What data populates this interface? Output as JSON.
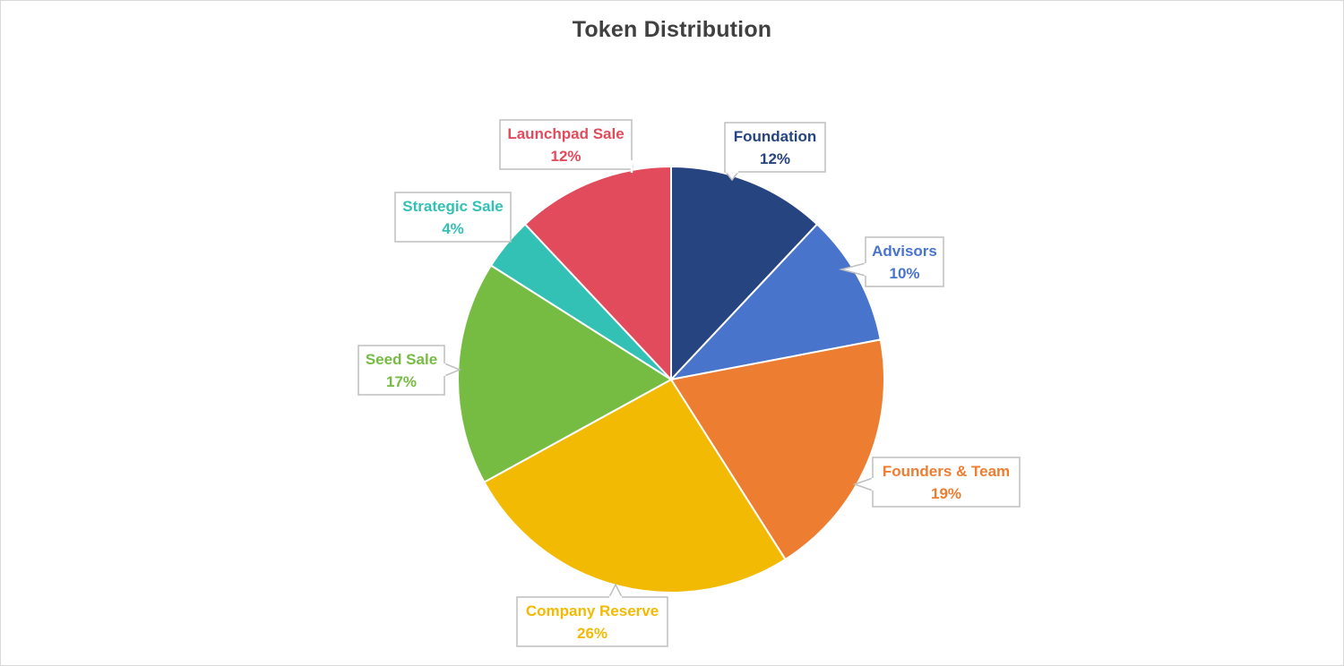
{
  "chart_data": {
    "type": "pie",
    "title": "Token Distribution",
    "unit": "%",
    "slices": [
      {
        "label": "Foundation",
        "value": 12,
        "color": "#264480"
      },
      {
        "label": "Advisors",
        "value": 10,
        "color": "#4874CC"
      },
      {
        "label": "Founders & Team",
        "value": 19,
        "color": "#ED7D31"
      },
      {
        "label": "Company Reserve",
        "value": 26,
        "color": "#F2BA03"
      },
      {
        "label": "Seed Sale",
        "value": 17,
        "color": "#76BC43"
      },
      {
        "label": "Strategic Sale",
        "value": 4,
        "color": "#33C1B6"
      },
      {
        "label": "Launchpad Sale",
        "value": 12,
        "color": "#E24B5C"
      }
    ],
    "start_angle_deg": 0,
    "direction": "clockwise",
    "data_labels": "callouts",
    "legend": "none"
  }
}
